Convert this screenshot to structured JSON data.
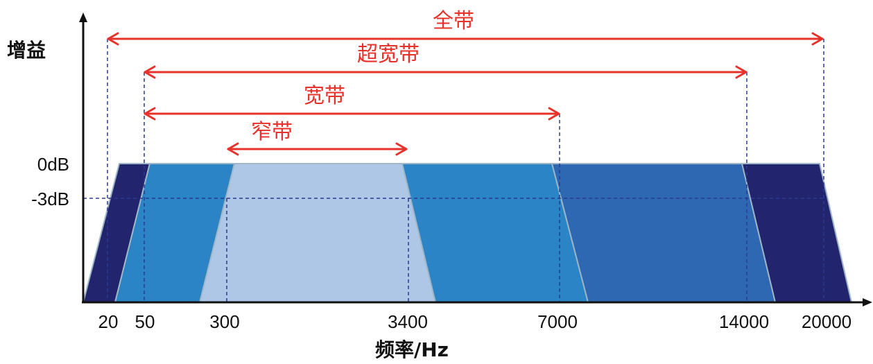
{
  "y_axis_label": "增益",
  "x_axis_label": "频率/Hz",
  "levels": {
    "top": "0dB",
    "minus3": "-3dB"
  },
  "ticks": [
    "20",
    "50",
    "300",
    "3400",
    "7000",
    "14000",
    "20000"
  ],
  "bands": [
    {
      "name": "全带",
      "from": "20",
      "to": "20000"
    },
    {
      "name": "超宽带",
      "from": "50",
      "to": "14000"
    },
    {
      "name": "宽带",
      "from": "50",
      "to": "7000"
    },
    {
      "name": "窄带",
      "from": "300",
      "to": "3400"
    }
  ],
  "colors": {
    "fullband": "#23246e",
    "superwide": "#2f68b2",
    "wide": "#2a84c6",
    "narrow": "#aec7e6",
    "arrow": "#e8312a",
    "label_red": "#e8312a",
    "guide": "#2b3a8f",
    "edge": "#9fb6c6"
  }
}
